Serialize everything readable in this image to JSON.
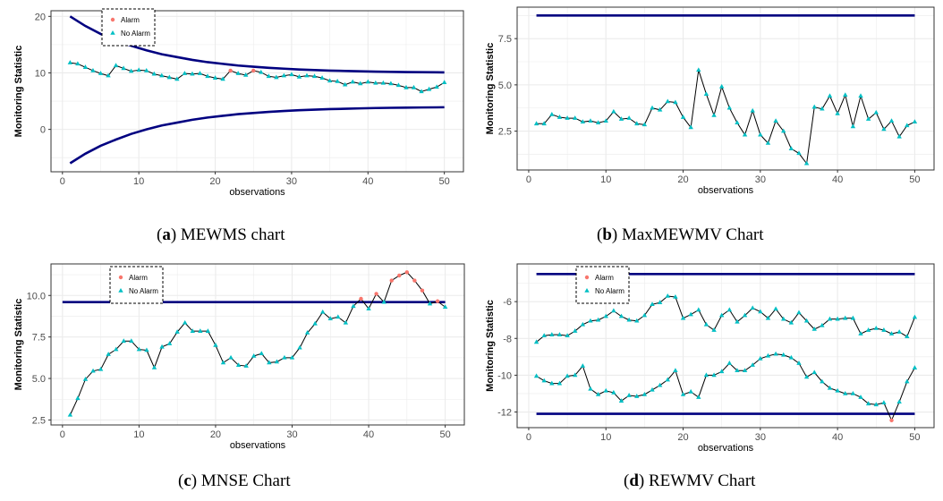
{
  "colors": {
    "limit": "#000080",
    "alarm": "#F8766D",
    "no_alarm": "#00BFC4",
    "line": "#000000",
    "grid": "#EBEBEB",
    "panel_border": "#333333"
  },
  "panels": [
    {
      "caption_letter": "a",
      "caption_text": "MEWMS chart",
      "chart_data": {
        "type": "line",
        "xlabel": "observations",
        "ylabel": "Monitoring Statistic",
        "xlim": [
          -1.5,
          52.5
        ],
        "ylim": [
          -7.5,
          21
        ],
        "xticks": [
          0,
          10,
          20,
          30,
          40,
          50
        ],
        "yticks": [
          0,
          10,
          20
        ],
        "legend": {
          "position": "top-left",
          "entries": [
            "Alarm",
            "No Alarm"
          ]
        },
        "limits": [
          {
            "kind": "ucl",
            "x": [
              1,
              3,
              5,
              7,
              9,
              11,
              13,
              15,
              17,
              19,
              21,
              23,
              25,
              27,
              29,
              31,
              33,
              35,
              37,
              39,
              41,
              43,
              45,
              47,
              49,
              50
            ],
            "y": [
              20,
              18.3,
              16.9,
              15.8,
              14.8,
              14,
              13.3,
              12.8,
              12.3,
              11.9,
              11.6,
              11.3,
              11.1,
              10.9,
              10.75,
              10.6,
              10.5,
              10.4,
              10.35,
              10.28,
              10.22,
              10.18,
              10.15,
              10.12,
              10.1,
              10.08
            ]
          },
          {
            "kind": "lcl",
            "x": [
              1,
              3,
              5,
              7,
              9,
              11,
              13,
              15,
              17,
              19,
              21,
              23,
              25,
              27,
              29,
              31,
              33,
              35,
              37,
              39,
              41,
              43,
              45,
              47,
              49,
              50
            ],
            "y": [
              -6,
              -4.3,
              -2.9,
              -1.8,
              -0.8,
              0,
              0.7,
              1.2,
              1.7,
              2.1,
              2.4,
              2.7,
              2.9,
              3.1,
              3.25,
              3.4,
              3.5,
              3.6,
              3.65,
              3.72,
              3.78,
              3.82,
              3.85,
              3.88,
              3.9,
              3.92
            ]
          }
        ],
        "series": [
          {
            "x": [
              1,
              2,
              3,
              4,
              5,
              6,
              7,
              8,
              9,
              10,
              11,
              12,
              13,
              14,
              15,
              16,
              17,
              18,
              19,
              20,
              21,
              22,
              23,
              24,
              25,
              26,
              27,
              28,
              29,
              30,
              31,
              32,
              33,
              34,
              35,
              36,
              37,
              38,
              39,
              40,
              41,
              42,
              43,
              44,
              45,
              46,
              47,
              48,
              49,
              50
            ],
            "y": [
              11.8,
              11.6,
              11.0,
              10.4,
              9.9,
              9.5,
              11.3,
              10.8,
              10.3,
              10.5,
              10.4,
              9.8,
              9.5,
              9.2,
              8.9,
              9.9,
              9.8,
              9.9,
              9.4,
              9.1,
              8.9,
              10.4,
              9.9,
              9.6,
              10.4,
              10.1,
              9.4,
              9.2,
              9.5,
              9.7,
              9.3,
              9.5,
              9.4,
              9.1,
              8.6,
              8.5,
              7.9,
              8.4,
              8.1,
              8.4,
              8.2,
              8.2,
              8.1,
              7.8,
              7.4,
              7.4,
              6.7,
              7.1,
              7.5,
              8.3
            ],
            "alarm": [
              22,
              25
            ]
          }
        ]
      }
    },
    {
      "caption_letter": "b",
      "caption_text": "MaxMEWMV Chart",
      "chart_data": {
        "type": "line",
        "xlabel": "observations",
        "ylabel": "Monitoring Statistic",
        "xlim": [
          -1.5,
          52.5
        ],
        "ylim": [
          0.4,
          9.2
        ],
        "xticks": [
          0,
          10,
          20,
          30,
          40,
          50
        ],
        "yticks": [
          2.5,
          5.0,
          7.5
        ],
        "ytick_labels": [
          "2.5",
          "5.0",
          "7.5"
        ],
        "limits": [
          {
            "kind": "ucl",
            "x": [
              1,
              50
            ],
            "y": [
              8.75,
              8.75
            ]
          }
        ],
        "series": [
          {
            "x": [
              1,
              2,
              3,
              4,
              5,
              6,
              7,
              8,
              9,
              10,
              11,
              12,
              13,
              14,
              15,
              16,
              17,
              18,
              19,
              20,
              21,
              22,
              23,
              24,
              25,
              26,
              27,
              28,
              29,
              30,
              31,
              32,
              33,
              34,
              35,
              36,
              37,
              38,
              39,
              40,
              41,
              42,
              43,
              44,
              45,
              46,
              47,
              48,
              49,
              50
            ],
            "y": [
              2.9,
              2.9,
              3.4,
              3.25,
              3.2,
              3.2,
              3.0,
              3.05,
              2.95,
              3.05,
              3.55,
              3.15,
              3.2,
              2.9,
              2.85,
              3.75,
              3.65,
              4.1,
              4.05,
              3.25,
              2.7,
              5.8,
              4.5,
              3.35,
              4.9,
              3.75,
              2.95,
              2.3,
              3.6,
              2.3,
              1.85,
              3.05,
              2.5,
              1.55,
              1.3,
              0.75,
              3.8,
              3.7,
              4.4,
              3.45,
              4.45,
              2.75,
              4.4,
              3.15,
              3.5,
              2.6,
              3.05,
              2.2,
              2.8,
              3.0
            ],
            "alarm": []
          }
        ]
      }
    },
    {
      "caption_letter": "c",
      "caption_text": "MNSE Chart",
      "chart_data": {
        "type": "line",
        "xlabel": "observations",
        "ylabel": "Monitoring Statistic",
        "xlim": [
          -1.5,
          52.5
        ],
        "ylim": [
          2.2,
          11.9
        ],
        "xticks": [
          0,
          10,
          20,
          30,
          40,
          50
        ],
        "yticks": [
          2.5,
          5.0,
          7.5,
          10.0
        ],
        "ytick_labels": [
          "2.5",
          "5.0",
          "7.5",
          "10.0"
        ],
        "legend": {
          "position": "top-left",
          "entries": [
            "Alarm",
            "No Alarm"
          ]
        },
        "limits": [
          {
            "kind": "ucl",
            "x": [
              0,
              50
            ],
            "y": [
              9.6,
              9.6
            ]
          }
        ],
        "series": [
          {
            "x": [
              1,
              2,
              3,
              4,
              5,
              6,
              7,
              8,
              9,
              10,
              11,
              12,
              13,
              14,
              15,
              16,
              17,
              18,
              19,
              20,
              21,
              22,
              23,
              24,
              25,
              26,
              27,
              28,
              29,
              30,
              31,
              32,
              33,
              34,
              35,
              36,
              37,
              38,
              39,
              40,
              41,
              42,
              43,
              44,
              45,
              46,
              47,
              48,
              49,
              50
            ],
            "y": [
              2.8,
              3.8,
              4.95,
              5.45,
              5.55,
              6.45,
              6.75,
              7.25,
              7.25,
              6.75,
              6.7,
              5.65,
              6.9,
              7.1,
              7.8,
              8.35,
              7.85,
              7.85,
              7.85,
              7.0,
              5.95,
              6.25,
              5.8,
              5.75,
              6.35,
              6.5,
              5.95,
              6.0,
              6.25,
              6.25,
              6.85,
              7.75,
              8.3,
              9.0,
              8.6,
              8.7,
              8.35,
              9.35,
              9.8,
              9.2,
              10.1,
              9.6,
              10.9,
              11.2,
              11.4,
              10.9,
              10.3,
              9.5,
              9.65,
              9.3
            ],
            "alarm": [
              39,
              41,
              43,
              44,
              45,
              46,
              47,
              49
            ]
          }
        ]
      }
    },
    {
      "caption_letter": "d",
      "caption_text": "REWMV Chart",
      "chart_data": {
        "type": "line",
        "xlabel": "observations",
        "ylabel": "Monitoring Statistic",
        "xlim": [
          -1.5,
          52.5
        ],
        "ylim": [
          -12.85,
          -3.95
        ],
        "xticks": [
          0,
          10,
          20,
          30,
          40,
          50
        ],
        "yticks": [
          -12,
          -10,
          -8,
          -6
        ],
        "legend": {
          "position": "top-left",
          "entries": [
            "Alarm",
            "No Alarm"
          ]
        },
        "limits": [
          {
            "kind": "ucl",
            "x": [
              1,
              50
            ],
            "y": [
              -4.5,
              -4.5
            ]
          },
          {
            "kind": "lcl",
            "x": [
              1,
              50
            ],
            "y": [
              -12.1,
              -12.1
            ]
          }
        ],
        "series": [
          {
            "name": "upper",
            "x": [
              1,
              2,
              3,
              4,
              5,
              6,
              7,
              8,
              9,
              10,
              11,
              12,
              13,
              14,
              15,
              16,
              17,
              18,
              19,
              20,
              21,
              22,
              23,
              24,
              25,
              26,
              27,
              28,
              29,
              30,
              31,
              32,
              33,
              34,
              35,
              36,
              37,
              38,
              39,
              40,
              41,
              42,
              43,
              44,
              45,
              46,
              47,
              48,
              49,
              50
            ],
            "y": [
              -8.2,
              -7.85,
              -7.8,
              -7.8,
              -7.85,
              -7.6,
              -7.25,
              -7.05,
              -7.0,
              -6.8,
              -6.5,
              -6.8,
              -7.0,
              -7.05,
              -6.75,
              -6.15,
              -6.05,
              -5.7,
              -5.75,
              -6.9,
              -6.7,
              -6.45,
              -7.25,
              -7.55,
              -6.75,
              -6.45,
              -7.1,
              -6.75,
              -6.35,
              -6.55,
              -6.9,
              -6.4,
              -6.95,
              -7.15,
              -6.6,
              -7.05,
              -7.5,
              -7.3,
              -6.95,
              -6.95,
              -6.9,
              -6.9,
              -7.75,
              -7.55,
              -7.45,
              -7.55,
              -7.75,
              -7.65,
              -7.9,
              -6.85
            ],
            "alarm": []
          },
          {
            "name": "lower",
            "x": [
              1,
              2,
              3,
              4,
              5,
              6,
              7,
              8,
              9,
              10,
              11,
              12,
              13,
              14,
              15,
              16,
              17,
              18,
              19,
              20,
              21,
              22,
              23,
              24,
              25,
              26,
              27,
              28,
              29,
              30,
              31,
              32,
              33,
              34,
              35,
              36,
              37,
              38,
              39,
              40,
              41,
              42,
              43,
              44,
              45,
              46,
              47,
              48,
              49,
              50
            ],
            "y": [
              -10.05,
              -10.3,
              -10.45,
              -10.45,
              -10.05,
              -10.0,
              -9.5,
              -10.75,
              -11.05,
              -10.85,
              -10.95,
              -11.4,
              -11.1,
              -11.15,
              -11.05,
              -10.8,
              -10.55,
              -10.25,
              -9.75,
              -11.05,
              -10.9,
              -11.2,
              -10.0,
              -10.0,
              -9.8,
              -9.35,
              -9.75,
              -9.75,
              -9.45,
              -9.1,
              -8.95,
              -8.85,
              -8.9,
              -9.05,
              -9.35,
              -10.1,
              -9.85,
              -10.35,
              -10.7,
              -10.85,
              -11.0,
              -11.0,
              -11.2,
              -11.55,
              -11.6,
              -11.5,
              -12.45,
              -11.45,
              -10.35,
              -9.6
            ],
            "alarm": [
              47
            ]
          }
        ]
      }
    }
  ]
}
